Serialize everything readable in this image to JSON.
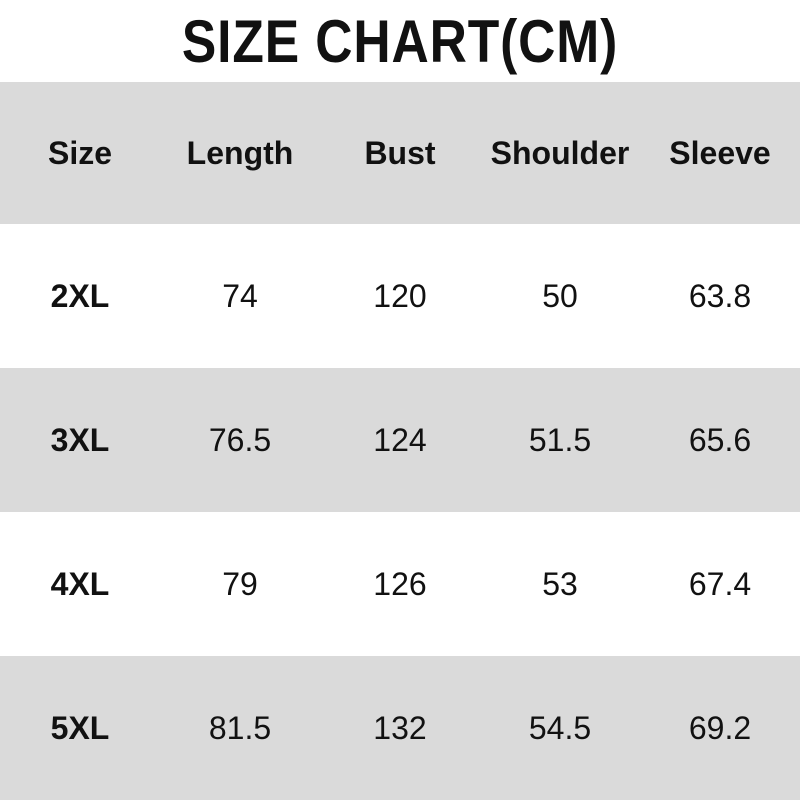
{
  "title": "SIZE CHART(CM)",
  "columns": [
    "Size",
    "Length",
    "Bust",
    "Shoulder",
    "Sleeve"
  ],
  "rows": [
    [
      "2XL",
      "74",
      "120",
      "50",
      "63.8"
    ],
    [
      "3XL",
      "76.5",
      "124",
      "51.5",
      "65.6"
    ],
    [
      "4XL",
      "79",
      "126",
      "53",
      "67.4"
    ],
    [
      "5XL",
      "81.5",
      "132",
      "54.5",
      "69.2"
    ]
  ],
  "colors": {
    "stripe": "#dadada",
    "background": "#ffffff",
    "text": "#111111"
  }
}
